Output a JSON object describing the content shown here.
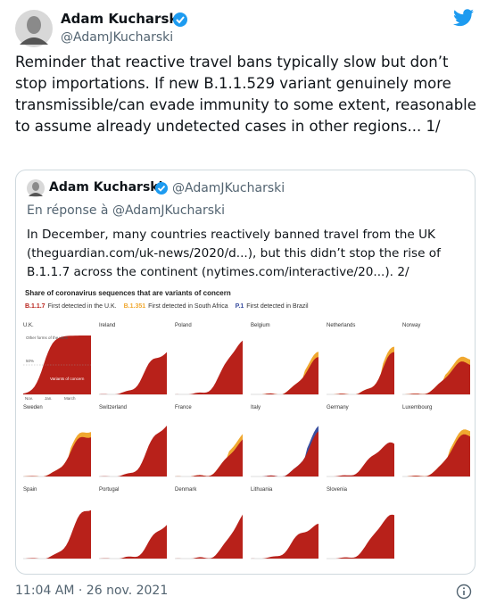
{
  "author": {
    "name": "Adam Kucharski",
    "handle": "@AdamJKucharski"
  },
  "tweet_text": "Reminder that reactive travel bans typically slow but don’t stop importations. If new B.1.1.529 variant genuinely more transmissible/can evade immunity to some extent, reasonable to assume already undetected cases in other regions... 1/",
  "quoted": {
    "author": {
      "name": "Adam Kucharski",
      "handle": "@AdamJKucharski"
    },
    "reply_to": "En réponse à @AdamJKucharski",
    "text": "In December, many countries reactively banned travel from the UK (theguardian.com/uk-news/2020/d...), but this didn’t stop the rise of B.1.1.7 across the continent (nytimes.com/interactive/20...). 2/",
    "chart": {
      "title": "Share of coronavirus sequences that are variants of concern",
      "legend": [
        {
          "label": "B.1.1.7",
          "text": "First detected in the U.K.",
          "color": "#b8211a"
        },
        {
          "label": "B.1.351",
          "text": "First detected in South Africa",
          "color": "#f0a830"
        },
        {
          "label": "P.1",
          "text": "First detected in Brazil",
          "color": "#3a4fa0"
        }
      ],
      "panels": [
        "U.K.",
        "Ireland",
        "Poland",
        "Belgium",
        "Netherlands",
        "Norway",
        "Sweden",
        "Switzerland",
        "France",
        "Italy",
        "Germany",
        "Luxembourg",
        "Spain",
        "Portugal",
        "Denmark",
        "Lithuania",
        "Slovenia"
      ],
      "annotations": {
        "other_forms": "Other forms of the virus",
        "fifty": "50%",
        "voc": "Variants of concern",
        "months": [
          "Nov.",
          "Jan.",
          "March"
        ]
      }
    }
  },
  "timestamp": "11:04 AM · 26 nov. 2021"
}
